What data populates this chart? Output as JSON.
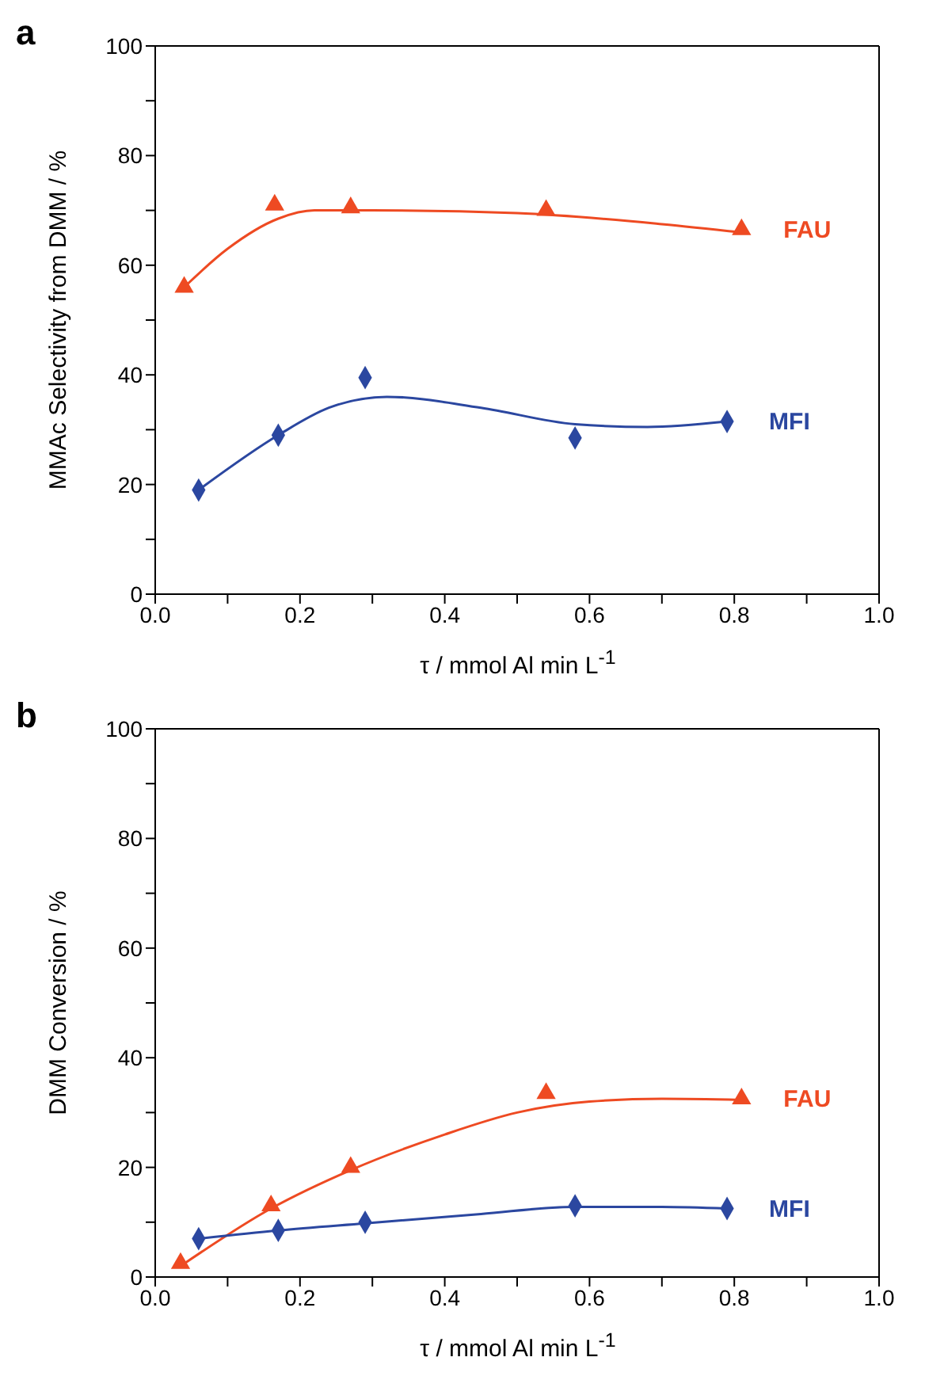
{
  "chart_data": [
    {
      "type": "scatter",
      "title": "a",
      "xlabel": "τ / mmol Al min L$^{-1}$",
      "ylabel": "MMAc Selectivity from DMM / %",
      "xlim": [
        0,
        1
      ],
      "xticks": [
        {
          "value": 0,
          "label": "0.0"
        },
        {
          "value": 0.1,
          "label": null
        },
        {
          "value": 0.2,
          "label": "0.2"
        },
        {
          "value": 0.3,
          "label": null
        },
        {
          "value": 0.4,
          "label": "0.4"
        },
        {
          "value": 0.5,
          "label": null
        },
        {
          "value": 0.6,
          "label": "0.6"
        },
        {
          "value": 0.7,
          "label": null
        },
        {
          "value": 0.8,
          "label": "0.8"
        },
        {
          "value": 0.9,
          "label": null
        },
        {
          "value": 1,
          "label": "1.0"
        }
      ],
      "ylim": [
        0,
        100
      ],
      "yticks": [
        0,
        {
          "value": 10,
          "label": null
        },
        20,
        {
          "value": 30,
          "label": null
        },
        40,
        {
          "value": 50,
          "label": null
        },
        60,
        {
          "value": 70,
          "label": null
        },
        80,
        {
          "value": 90,
          "label": null
        },
        100
      ],
      "series": [
        {
          "name": "FAU",
          "color": "#ee4a22",
          "marker": "triangle",
          "x": [
            0.04,
            0.165,
            0.27,
            0.54,
            0.81
          ],
          "values": [
            56,
            71,
            70.5,
            70,
            66.5
          ]
        },
        {
          "name": "MFI",
          "color": "#2b47a0",
          "marker": "diamond",
          "x": [
            0.06,
            0.17,
            0.29,
            0.58,
            0.79
          ],
          "values": [
            19,
            29,
            39.5,
            28.5,
            31.5
          ]
        },
        {
          "type": "line",
          "color": "#ee4a22",
          "marker": "none",
          "x": [
            0.04,
            0.1,
            0.17,
            0.22,
            0.3,
            0.5,
            0.7,
            0.81
          ],
          "values": [
            56,
            63,
            68.5,
            70,
            70,
            69.5,
            67.5,
            66
          ]
        },
        {
          "type": "line",
          "color": "#2b47a0",
          "marker": "none",
          "x": [
            0.06,
            0.17,
            0.24,
            0.32,
            0.45,
            0.58,
            0.68,
            0.79
          ],
          "values": [
            19,
            29,
            34,
            36,
            34,
            31,
            30.5,
            31.5
          ]
        }
      ]
    },
    {
      "type": "scatter",
      "title": "b",
      "xlabel": "τ / mmol Al min L$^{-1}$",
      "ylabel": "DMM Conversion / %",
      "xlim": [
        0,
        1
      ],
      "xticks": [
        {
          "value": 0,
          "label": "0.0"
        },
        {
          "value": 0.1,
          "label": null
        },
        {
          "value": 0.2,
          "label": "0.2"
        },
        {
          "value": 0.3,
          "label": null
        },
        {
          "value": 0.4,
          "label": "0.4"
        },
        {
          "value": 0.5,
          "label": null
        },
        {
          "value": 0.6,
          "label": "0.6"
        },
        {
          "value": 0.7,
          "label": null
        },
        {
          "value": 0.8,
          "label": "0.8"
        },
        {
          "value": 0.9,
          "label": null
        },
        {
          "value": 1,
          "label": "1.0"
        }
      ],
      "ylim": [
        0,
        100
      ],
      "yticks": [
        0,
        {
          "value": 10,
          "label": null
        },
        20,
        {
          "value": 30,
          "label": null
        },
        40,
        {
          "value": 50,
          "label": null
        },
        60,
        {
          "value": 70,
          "label": null
        },
        80,
        {
          "value": 90,
          "label": null
        },
        100
      ],
      "series": [
        {
          "name": "FAU",
          "color": "#ee4a22",
          "marker": "triangle",
          "x": [
            0.035,
            0.16,
            0.27,
            0.54,
            0.81
          ],
          "values": [
            2.5,
            13,
            20,
            33.5,
            32.5
          ]
        },
        {
          "name": "MFI",
          "color": "#2b47a0",
          "marker": "diamond",
          "x": [
            0.06,
            0.17,
            0.29,
            0.58,
            0.79
          ],
          "values": [
            7,
            8.5,
            10,
            13,
            12.5
          ]
        },
        {
          "type": "line",
          "color": "#ee4a22",
          "marker": "none",
          "x": [
            0.035,
            0.16,
            0.27,
            0.4,
            0.5,
            0.6,
            0.7,
            0.81
          ],
          "values": [
            2,
            12.5,
            19.5,
            26,
            30,
            32,
            32.5,
            32.3
          ]
        },
        {
          "type": "line",
          "color": "#2b47a0",
          "marker": "none",
          "x": [
            0.06,
            0.17,
            0.29,
            0.45,
            0.58,
            0.7,
            0.79
          ],
          "values": [
            7,
            8.5,
            9.8,
            11.5,
            12.8,
            12.8,
            12.5
          ]
        }
      ]
    }
  ]
}
